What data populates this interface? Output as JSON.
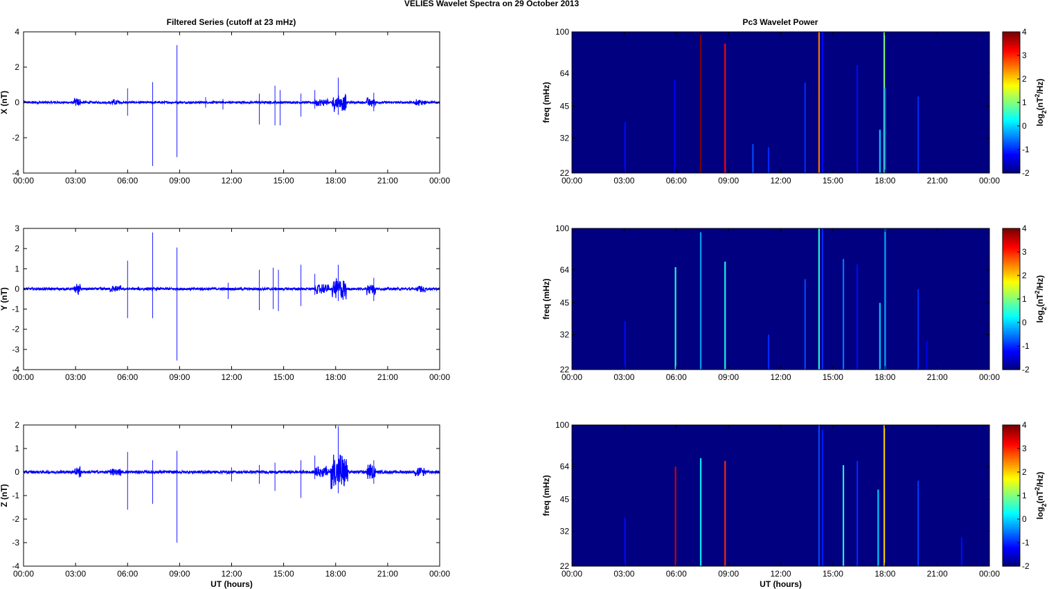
{
  "figure": {
    "suptitle": "VELIES Wavelet Spectra on 29 October   2013",
    "left_title": "Filtered Series (cutoff at 23 mHz)",
    "right_title": "Pc3 Wavelet Power",
    "xlabel": "UT (hours)",
    "freq_label": "freq (mHz)",
    "colorbar_label": "log2(nT²/Hz)",
    "time_ticks": [
      "00:00",
      "03:00",
      "06:00",
      "09:00",
      "12:00",
      "15:00",
      "18:00",
      "21:00",
      "00:00"
    ]
  },
  "chart_data": [
    {
      "type": "line",
      "title": "Filtered Series (cutoff at 23 mHz)",
      "component": "X",
      "ylabel": "X (nT)",
      "xlabel": "",
      "xlim_hours": [
        0,
        24
      ],
      "ylim": [
        -4,
        4
      ],
      "yticks": [
        -4,
        -2,
        0,
        2,
        4
      ],
      "color": "#0000ff",
      "noise_amplitude": 0.06,
      "bursts": [
        [
          2.9,
          3.3,
          0.3
        ],
        [
          5.0,
          5.6,
          0.2
        ],
        [
          16.8,
          17.6,
          0.25
        ],
        [
          17.8,
          18.6,
          0.55
        ],
        [
          19.8,
          20.3,
          0.35
        ],
        [
          22.6,
          23.2,
          0.2
        ]
      ],
      "spikes": [
        {
          "t": 6.0,
          "min": -0.75,
          "max": 0.8
        },
        {
          "t": 7.45,
          "min": -3.6,
          "max": 1.15
        },
        {
          "t": 8.85,
          "min": -3.1,
          "max": 3.25
        },
        {
          "t": 10.5,
          "min": -0.3,
          "max": 0.3
        },
        {
          "t": 11.5,
          "min": -0.4,
          "max": 0.2
        },
        {
          "t": 13.6,
          "min": -1.25,
          "max": 0.5
        },
        {
          "t": 14.5,
          "min": -1.3,
          "max": 0.95
        },
        {
          "t": 14.8,
          "min": -1.3,
          "max": 0.7
        },
        {
          "t": 16.0,
          "min": -0.8,
          "max": 0.5
        },
        {
          "t": 16.8,
          "min": -0.35,
          "max": 0.7
        },
        {
          "t": 18.15,
          "min": -0.7,
          "max": 1.4
        },
        {
          "t": 20.2,
          "min": -0.5,
          "max": 0.55
        }
      ]
    },
    {
      "type": "line",
      "title": "",
      "component": "Y",
      "ylabel": "Y (nT)",
      "xlabel": "",
      "xlim_hours": [
        0,
        24
      ],
      "ylim": [
        -4,
        3
      ],
      "yticks": [
        -4,
        -3,
        -2,
        -1,
        0,
        1,
        2,
        3
      ],
      "color": "#0000ff",
      "noise_amplitude": 0.06,
      "bursts": [
        [
          2.9,
          3.3,
          0.3
        ],
        [
          5.0,
          5.6,
          0.2
        ],
        [
          16.8,
          17.6,
          0.3
        ],
        [
          17.8,
          18.6,
          0.6
        ],
        [
          19.8,
          20.3,
          0.4
        ],
        [
          22.6,
          23.2,
          0.2
        ]
      ],
      "spikes": [
        {
          "t": 6.0,
          "min": -1.45,
          "max": 1.4
        },
        {
          "t": 7.45,
          "min": -1.45,
          "max": 2.8
        },
        {
          "t": 8.85,
          "min": -3.55,
          "max": 2.05
        },
        {
          "t": 11.8,
          "min": -0.5,
          "max": 0.3
        },
        {
          "t": 13.6,
          "min": -1.05,
          "max": 0.95
        },
        {
          "t": 14.4,
          "min": -1.0,
          "max": 1.05
        },
        {
          "t": 14.7,
          "min": -1.1,
          "max": 0.95
        },
        {
          "t": 16.0,
          "min": -0.85,
          "max": 1.2
        },
        {
          "t": 16.8,
          "min": -0.3,
          "max": 0.75
        },
        {
          "t": 18.15,
          "min": -0.6,
          "max": 1.2
        },
        {
          "t": 20.2,
          "min": -0.6,
          "max": 0.55
        }
      ]
    },
    {
      "type": "line",
      "title": "",
      "component": "Z",
      "ylabel": "Z (nT)",
      "xlabel": "UT (hours)",
      "xlim_hours": [
        0,
        24
      ],
      "ylim": [
        -4,
        2
      ],
      "yticks": [
        -4,
        -3,
        -2,
        -1,
        0,
        1,
        2
      ],
      "color": "#0000ff",
      "noise_amplitude": 0.06,
      "bursts": [
        [
          2.9,
          3.3,
          0.3
        ],
        [
          5.0,
          5.6,
          0.2
        ],
        [
          16.8,
          17.6,
          0.3
        ],
        [
          17.7,
          18.7,
          0.9
        ],
        [
          19.8,
          20.3,
          0.4
        ],
        [
          22.6,
          23.2,
          0.25
        ]
      ],
      "spikes": [
        {
          "t": 6.0,
          "min": -1.6,
          "max": 0.85
        },
        {
          "t": 7.45,
          "min": -1.35,
          "max": 0.5
        },
        {
          "t": 8.85,
          "min": -3.0,
          "max": 0.9
        },
        {
          "t": 12.0,
          "min": -0.4,
          "max": 0.2
        },
        {
          "t": 13.6,
          "min": -0.5,
          "max": 0.3
        },
        {
          "t": 14.5,
          "min": -0.8,
          "max": 0.4
        },
        {
          "t": 16.0,
          "min": -1.1,
          "max": 0.5
        },
        {
          "t": 16.8,
          "min": -0.3,
          "max": 0.7
        },
        {
          "t": 18.15,
          "min": -0.9,
          "max": 1.95
        },
        {
          "t": 20.2,
          "min": -0.5,
          "max": 0.5
        }
      ]
    },
    {
      "type": "heatmap",
      "title": "Pc3 Wavelet Power",
      "component": "X",
      "ylabel": "freq (mHz)",
      "xlabel": "",
      "xlim_hours": [
        0,
        24
      ],
      "freq_ticks_mHz": [
        22,
        32,
        45,
        64,
        100
      ],
      "yscale": "log",
      "colorbar_label": "log2(nT²/Hz)",
      "colorbar_range": [
        -2,
        4
      ],
      "colorbar_ticks": [
        -2,
        -1,
        0,
        1,
        2,
        3,
        4
      ],
      "colormap": "jet",
      "background_value": -2,
      "streaks": [
        {
          "t": 3.05,
          "value": -1.2,
          "fmax": 38
        },
        {
          "t": 5.9,
          "value": -1.3,
          "fmax": 60
        },
        {
          "t": 7.4,
          "value": 4.0,
          "fmax": 97
        },
        {
          "t": 8.8,
          "value": 3.2,
          "fmax": 88
        },
        {
          "t": 10.4,
          "value": -0.8,
          "fmax": 30
        },
        {
          "t": 11.3,
          "value": -1.0,
          "fmax": 29
        },
        {
          "t": 13.4,
          "value": -1.0,
          "fmax": 58
        },
        {
          "t": 14.2,
          "value": 2.5,
          "fmax": 100
        },
        {
          "t": 14.4,
          "value": -1.2,
          "fmax": 100
        },
        {
          "t": 16.4,
          "value": -1.2,
          "fmax": 70
        },
        {
          "t": 17.7,
          "value": 0.0,
          "fmax": 35
        },
        {
          "t": 17.95,
          "value": 1.0,
          "fmax": 100
        },
        {
          "t": 18.0,
          "value": -0.5,
          "fmax": 55
        },
        {
          "t": 19.9,
          "value": -1.0,
          "fmax": 50
        }
      ]
    },
    {
      "type": "heatmap",
      "title": "",
      "component": "Y",
      "ylabel": "freq (mHz)",
      "xlabel": "",
      "xlim_hours": [
        0,
        24
      ],
      "freq_ticks_mHz": [
        22,
        32,
        45,
        64,
        100
      ],
      "yscale": "log",
      "colorbar_label": "log2(nT²/Hz)",
      "colorbar_range": [
        -2,
        4
      ],
      "colorbar_ticks": [
        -2,
        -1,
        0,
        1,
        2,
        3,
        4
      ],
      "colormap": "jet",
      "background_value": -2,
      "streaks": [
        {
          "t": 3.05,
          "value": -1.2,
          "fmax": 37
        },
        {
          "t": 5.95,
          "value": 0.5,
          "fmax": 66
        },
        {
          "t": 7.4,
          "value": -0.3,
          "fmax": 96
        },
        {
          "t": 8.8,
          "value": 0.4,
          "fmax": 70
        },
        {
          "t": 11.3,
          "value": -1.0,
          "fmax": 32
        },
        {
          "t": 13.4,
          "value": -0.8,
          "fmax": 58
        },
        {
          "t": 14.2,
          "value": 0.5,
          "fmax": 100
        },
        {
          "t": 14.4,
          "value": -1.0,
          "fmax": 100
        },
        {
          "t": 15.6,
          "value": -0.5,
          "fmax": 72
        },
        {
          "t": 16.4,
          "value": -1.2,
          "fmax": 68
        },
        {
          "t": 17.7,
          "value": 0.0,
          "fmax": 45
        },
        {
          "t": 18.0,
          "value": -0.2,
          "fmax": 100
        },
        {
          "t": 19.9,
          "value": -1.0,
          "fmax": 52
        },
        {
          "t": 20.4,
          "value": -1.3,
          "fmax": 30
        }
      ]
    },
    {
      "type": "heatmap",
      "title": "",
      "component": "Z",
      "ylabel": "freq (mHz)",
      "xlabel": "UT (hours)",
      "xlim_hours": [
        0,
        24
      ],
      "freq_ticks_mHz": [
        22,
        32,
        45,
        64,
        100
      ],
      "yscale": "log",
      "colorbar_label": "log2(nT²/Hz)",
      "colorbar_range": [
        -2,
        4
      ],
      "colorbar_ticks": [
        -2,
        -1,
        0,
        1,
        2,
        3,
        4
      ],
      "colormap": "jet",
      "background_value": -2,
      "streaks": [
        {
          "t": 3.05,
          "value": -1.2,
          "fmax": 37
        },
        {
          "t": 5.95,
          "value": 3.5,
          "fmax": 64
        },
        {
          "t": 7.4,
          "value": 0.2,
          "fmax": 70
        },
        {
          "t": 8.8,
          "value": 3.0,
          "fmax": 68
        },
        {
          "t": 14.2,
          "value": -0.8,
          "fmax": 100
        },
        {
          "t": 14.4,
          "value": -1.1,
          "fmax": 95
        },
        {
          "t": 15.6,
          "value": 0.4,
          "fmax": 65
        },
        {
          "t": 16.4,
          "value": -1.0,
          "fmax": 68
        },
        {
          "t": 17.6,
          "value": 0.0,
          "fmax": 50
        },
        {
          "t": 17.95,
          "value": 2.0,
          "fmax": 100
        },
        {
          "t": 19.9,
          "value": -0.9,
          "fmax": 55
        },
        {
          "t": 22.4,
          "value": -1.2,
          "fmax": 30
        }
      ]
    }
  ]
}
